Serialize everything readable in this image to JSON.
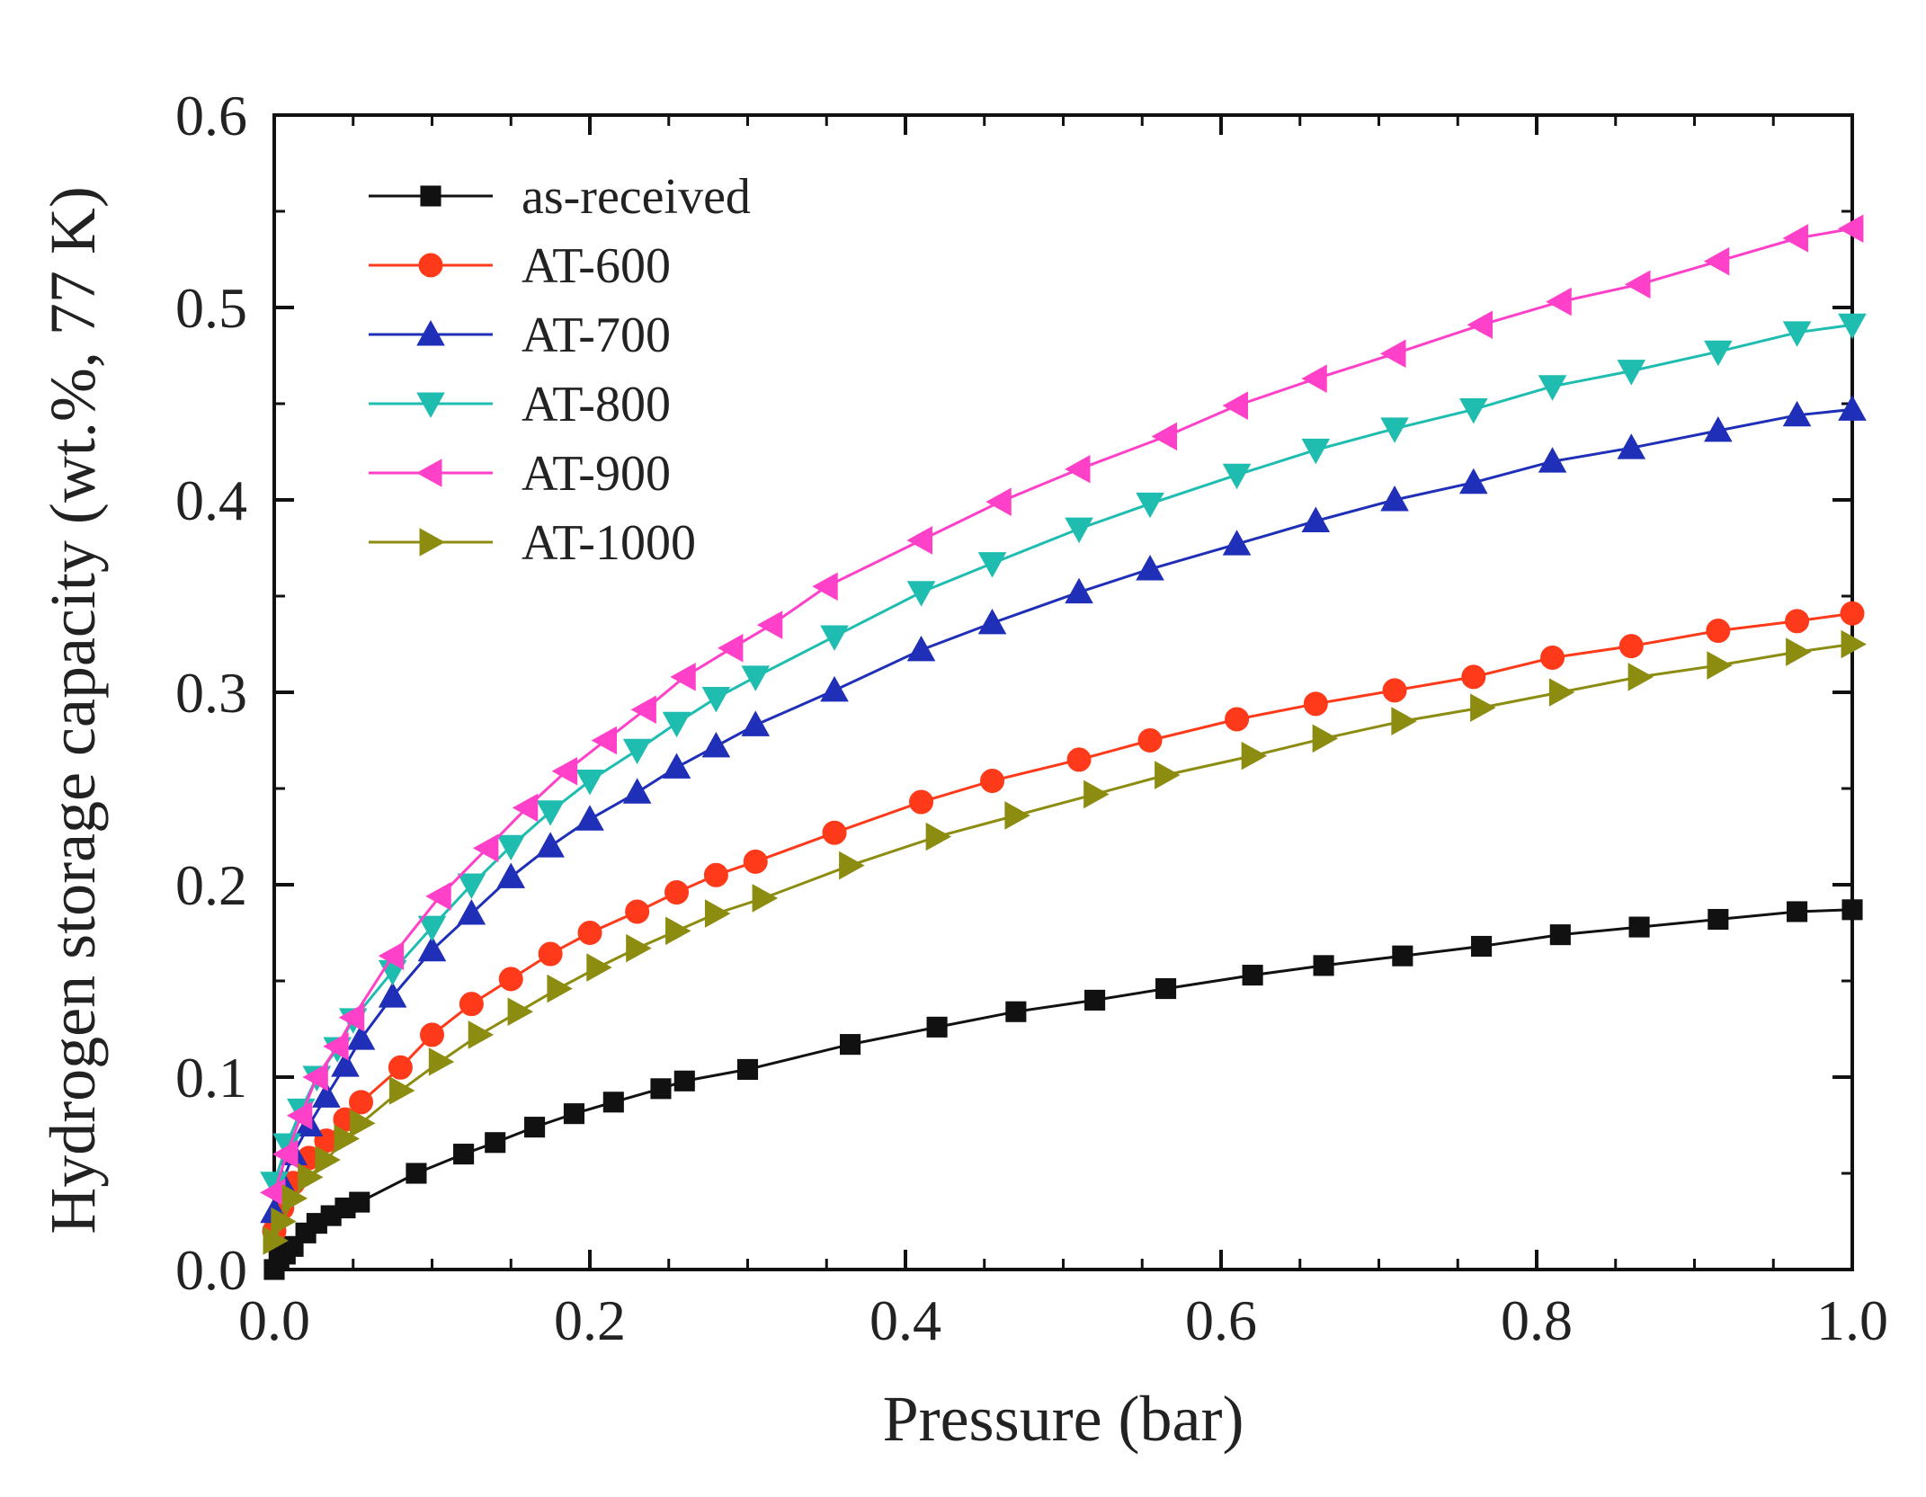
{
  "chart_data": {
    "type": "line",
    "title": "",
    "xlabel": "Pressure (bar)",
    "ylabel": "Hydrogen storage capacity (wt.%, 77 K)",
    "xlim": [
      0.0,
      1.0
    ],
    "ylim": [
      0.0,
      0.6
    ],
    "x_ticks": [
      "0.0",
      "0.2",
      "0.4",
      "0.6",
      "0.8",
      "1.0"
    ],
    "y_ticks": [
      "0.0",
      "0.1",
      "0.2",
      "0.3",
      "0.4",
      "0.5",
      "0.6"
    ],
    "grid": false,
    "legend_position": "top-left",
    "series": [
      {
        "name": "as-received",
        "color": "#111111",
        "marker": "square",
        "x": [
          0.0,
          0.003,
          0.007,
          0.012,
          0.02,
          0.027,
          0.036,
          0.045,
          0.054,
          0.09,
          0.12,
          0.14,
          0.165,
          0.19,
          0.215,
          0.245,
          0.26,
          0.3,
          0.365,
          0.42,
          0.47,
          0.52,
          0.565,
          0.62,
          0.665,
          0.715,
          0.765,
          0.815,
          0.865,
          0.915,
          0.965,
          1.0
        ],
        "y": [
          0.0,
          0.005,
          0.008,
          0.012,
          0.019,
          0.024,
          0.028,
          0.032,
          0.035,
          0.05,
          0.06,
          0.066,
          0.074,
          0.081,
          0.087,
          0.094,
          0.098,
          0.104,
          0.117,
          0.126,
          0.134,
          0.14,
          0.146,
          0.153,
          0.158,
          0.163,
          0.168,
          0.174,
          0.178,
          0.182,
          0.186,
          0.187
        ]
      },
      {
        "name": "AT-600",
        "color": "#ff3a1a",
        "marker": "circle",
        "x": [
          0.0,
          0.005,
          0.012,
          0.022,
          0.033,
          0.045,
          0.055,
          0.08,
          0.1,
          0.125,
          0.15,
          0.175,
          0.2,
          0.23,
          0.255,
          0.28,
          0.305,
          0.355,
          0.41,
          0.455,
          0.51,
          0.555,
          0.61,
          0.66,
          0.71,
          0.76,
          0.81,
          0.86,
          0.915,
          0.965,
          1.0
        ],
        "y": [
          0.02,
          0.032,
          0.045,
          0.058,
          0.067,
          0.078,
          0.087,
          0.105,
          0.122,
          0.138,
          0.151,
          0.164,
          0.175,
          0.186,
          0.196,
          0.205,
          0.212,
          0.227,
          0.243,
          0.254,
          0.265,
          0.275,
          0.286,
          0.294,
          0.301,
          0.308,
          0.318,
          0.324,
          0.332,
          0.337,
          0.341
        ]
      },
      {
        "name": "AT-700",
        "color": "#1f2fb8",
        "marker": "triangle-up",
        "x": [
          0.0,
          0.005,
          0.012,
          0.022,
          0.033,
          0.045,
          0.055,
          0.075,
          0.1,
          0.125,
          0.15,
          0.175,
          0.2,
          0.23,
          0.255,
          0.28,
          0.305,
          0.355,
          0.41,
          0.455,
          0.51,
          0.555,
          0.61,
          0.66,
          0.71,
          0.76,
          0.81,
          0.86,
          0.915,
          0.965,
          1.0
        ],
        "y": [
          0.03,
          0.045,
          0.06,
          0.075,
          0.09,
          0.106,
          0.12,
          0.142,
          0.166,
          0.185,
          0.204,
          0.22,
          0.234,
          0.248,
          0.261,
          0.272,
          0.283,
          0.301,
          0.322,
          0.336,
          0.352,
          0.364,
          0.377,
          0.389,
          0.4,
          0.409,
          0.42,
          0.427,
          0.436,
          0.444,
          0.447
        ]
      },
      {
        "name": "AT-800",
        "color": "#1fbdb0",
        "marker": "triangle-down",
        "x": [
          0.0,
          0.008,
          0.017,
          0.027,
          0.04,
          0.05,
          0.075,
          0.1,
          0.125,
          0.15,
          0.175,
          0.2,
          0.23,
          0.255,
          0.28,
          0.305,
          0.355,
          0.41,
          0.455,
          0.51,
          0.555,
          0.61,
          0.66,
          0.71,
          0.76,
          0.81,
          0.86,
          0.915,
          0.965,
          1.0
        ],
        "y": [
          0.045,
          0.065,
          0.083,
          0.1,
          0.115,
          0.13,
          0.155,
          0.178,
          0.2,
          0.22,
          0.238,
          0.254,
          0.27,
          0.284,
          0.297,
          0.308,
          0.329,
          0.352,
          0.367,
          0.385,
          0.398,
          0.413,
          0.426,
          0.437,
          0.447,
          0.459,
          0.467,
          0.477,
          0.487,
          0.491
        ]
      },
      {
        "name": "AT-900",
        "color": "#ff40c8",
        "marker": "triangle-left",
        "x": [
          0.0,
          0.008,
          0.017,
          0.027,
          0.04,
          0.05,
          0.075,
          0.105,
          0.135,
          0.16,
          0.185,
          0.21,
          0.235,
          0.26,
          0.29,
          0.315,
          0.35,
          0.41,
          0.46,
          0.51,
          0.565,
          0.61,
          0.66,
          0.71,
          0.765,
          0.815,
          0.865,
          0.915,
          0.965,
          1.0
        ],
        "y": [
          0.04,
          0.06,
          0.08,
          0.1,
          0.116,
          0.131,
          0.163,
          0.194,
          0.219,
          0.24,
          0.259,
          0.275,
          0.291,
          0.308,
          0.323,
          0.335,
          0.355,
          0.379,
          0.399,
          0.416,
          0.433,
          0.449,
          0.463,
          0.476,
          0.491,
          0.503,
          0.512,
          0.524,
          0.536,
          0.541
        ]
      },
      {
        "name": "AT-1000",
        "color": "#8c8c10",
        "marker": "triangle-right",
        "x": [
          0.0,
          0.005,
          0.012,
          0.022,
          0.033,
          0.045,
          0.055,
          0.08,
          0.105,
          0.13,
          0.155,
          0.18,
          0.205,
          0.23,
          0.255,
          0.28,
          0.31,
          0.365,
          0.42,
          0.47,
          0.52,
          0.565,
          0.62,
          0.665,
          0.715,
          0.765,
          0.815,
          0.865,
          0.915,
          0.965,
          1.0
        ],
        "y": [
          0.015,
          0.025,
          0.037,
          0.048,
          0.057,
          0.068,
          0.076,
          0.093,
          0.108,
          0.122,
          0.134,
          0.146,
          0.157,
          0.167,
          0.176,
          0.185,
          0.193,
          0.21,
          0.225,
          0.236,
          0.247,
          0.257,
          0.267,
          0.276,
          0.285,
          0.292,
          0.3,
          0.308,
          0.314,
          0.321,
          0.325
        ]
      }
    ]
  }
}
